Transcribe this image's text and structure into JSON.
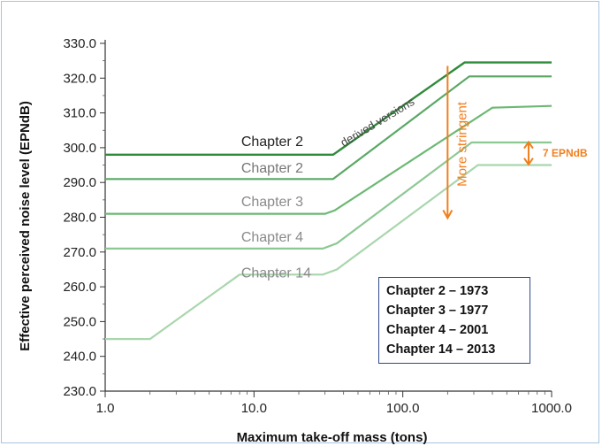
{
  "chart_data": {
    "type": "line",
    "xlabel": "Maximum take-off mass (tons)",
    "ylabel": "Effective perceived noise level (EPNdB)",
    "xscale": "log",
    "xlim": [
      1.0,
      1000.0
    ],
    "ylim": [
      230.0,
      330.0
    ],
    "x_ticks": [
      "1.0",
      "10.0",
      "100.0",
      "1000.0"
    ],
    "y_ticks": [
      "230.0",
      "240.0",
      "250.0",
      "260.0",
      "270.0",
      "280.0",
      "290.0",
      "300.0",
      "310.0",
      "320.0",
      "330.0"
    ],
    "grid": false,
    "series": [
      {
        "name": "Chapter 2",
        "color": "#2e8b3a",
        "label_at": [
          8.2,
          300.5
        ],
        "points": [
          [
            1.0,
            298
          ],
          [
            34,
            298
          ],
          [
            260,
            324.5
          ],
          [
            1000,
            324.5
          ]
        ]
      },
      {
        "name": "Chapter 2",
        "color": "#5aa865",
        "label_at": [
          8.2,
          292.8
        ],
        "points": [
          [
            1.0,
            291
          ],
          [
            34,
            291
          ],
          [
            280,
            320.5
          ],
          [
            1000,
            320.5
          ]
        ]
      },
      {
        "name": "Chapter 3",
        "color": "#6db874",
        "label_at": [
          8.2,
          283.2
        ],
        "points": [
          [
            1.0,
            281
          ],
          [
            30,
            281
          ],
          [
            35,
            282
          ],
          [
            400,
            311.5
          ],
          [
            1000,
            312
          ]
        ]
      },
      {
        "name": "Chapter 4",
        "color": "#8cc893",
        "label_at": [
          8.2,
          273.0
        ],
        "points": [
          [
            1.0,
            271
          ],
          [
            29,
            271
          ],
          [
            36,
            272.5
          ],
          [
            290,
            301.5
          ],
          [
            1000,
            301.5
          ]
        ]
      },
      {
        "name": "Chapter 14",
        "color": "#a9d6ad",
        "label_at": [
          8.2,
          262.7
        ],
        "points": [
          [
            1.0,
            245
          ],
          [
            2.0,
            245
          ],
          [
            8.0,
            263.5
          ],
          [
            29,
            263.5
          ],
          [
            36,
            265
          ],
          [
            320,
            295
          ],
          [
            1000,
            295
          ]
        ]
      }
    ],
    "annotations": {
      "derived_versions": "derived versions",
      "more_stringent": "More stringent",
      "gap_label": "7 EPNdB"
    },
    "legend_box": [
      "Chapter 2 – 1973",
      "Chapter 3 – 1977",
      "Chapter 4 – 2001",
      "Chapter 14 – 2013"
    ],
    "accent_color": "#f07f1e"
  }
}
